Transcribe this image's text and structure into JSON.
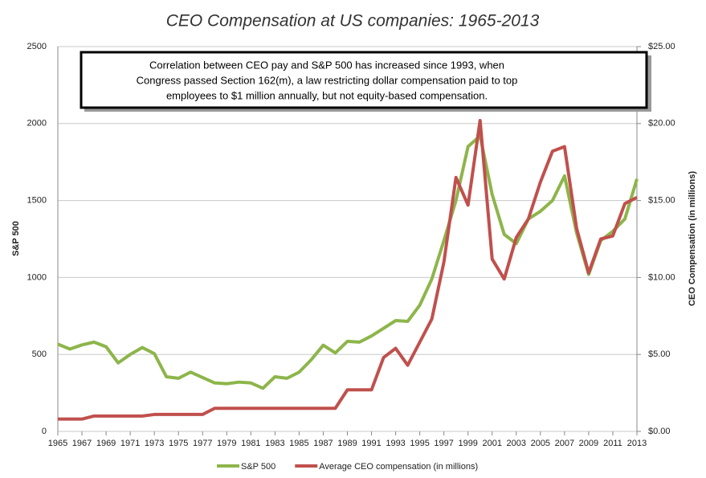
{
  "chart_data": {
    "type": "line",
    "title": "CEO Compensation at US companies: 1965-2013",
    "annotation": [
      "Correlation between CEO pay and S&P 500 has increased since 1993, when",
      "Congress passed Section 162(m), a law restricting dollar compensation paid to top",
      "employees to $1 million annually, but not equity-based compensation."
    ],
    "y_label": "S&P 500",
    "y2_label": "CEO Compensation (in millions)",
    "x": [
      1965,
      1966,
      1967,
      1968,
      1969,
      1970,
      1971,
      1972,
      1973,
      1974,
      1975,
      1976,
      1977,
      1978,
      1979,
      1980,
      1981,
      1982,
      1983,
      1984,
      1985,
      1986,
      1987,
      1988,
      1989,
      1990,
      1991,
      1992,
      1993,
      1994,
      1995,
      1996,
      1997,
      1998,
      1999,
      2000,
      2001,
      2002,
      2003,
      2004,
      2005,
      2006,
      2007,
      2008,
      2009,
      2010,
      2011,
      2012,
      2013
    ],
    "series": [
      {
        "name": "S&P 500",
        "color": "#8db54a",
        "values": [
          567,
          535,
          562,
          580,
          550,
          445,
          500,
          545,
          505,
          355,
          345,
          385,
          350,
          315,
          310,
          320,
          315,
          280,
          355,
          345,
          385,
          465,
          560,
          510,
          585,
          580,
          620,
          670,
          720,
          715,
          820,
          990,
          1240,
          1500,
          1850,
          1920,
          1540,
          1280,
          1220,
          1380,
          1430,
          1500,
          1660,
          1290,
          1020,
          1240,
          1300,
          1380,
          1640
        ]
      },
      {
        "name": "Average CEO compensation (in millions)",
        "color": "#c0504d",
        "axis": "y2",
        "values": [
          0.8,
          0.8,
          0.8,
          1.0,
          1.0,
          1.0,
          1.0,
          1.0,
          1.1,
          1.1,
          1.1,
          1.1,
          1.1,
          1.5,
          1.5,
          1.5,
          1.5,
          1.5,
          1.5,
          1.5,
          1.5,
          1.5,
          1.5,
          1.5,
          2.7,
          2.7,
          2.7,
          4.8,
          5.4,
          4.3,
          5.8,
          7.3,
          11.0,
          16.5,
          14.7,
          20.2,
          11.2,
          9.9,
          12.6,
          13.8,
          16.2,
          18.2,
          18.5,
          13.2,
          10.3,
          12.5,
          12.7,
          14.8,
          15.2
        ]
      }
    ],
    "xlim": [
      1965,
      2013
    ],
    "xticks": [
      1965,
      1967,
      1969,
      1971,
      1973,
      1975,
      1977,
      1979,
      1981,
      1983,
      1985,
      1987,
      1989,
      1991,
      1993,
      1995,
      1997,
      1999,
      2001,
      2003,
      2005,
      2007,
      2009,
      2011,
      2013
    ],
    "ylim": [
      0,
      2500
    ],
    "yticks": [
      0,
      500,
      1000,
      1500,
      2000,
      2500
    ],
    "y2lim": [
      0,
      25
    ],
    "y2ticks": [
      {
        "value": 0,
        "label": "$0.00"
      },
      {
        "value": 5,
        "label": "$5.00"
      },
      {
        "value": 10,
        "label": "$10.00"
      },
      {
        "value": 15,
        "label": "$15.00"
      },
      {
        "value": 20,
        "label": "$20.00"
      },
      {
        "value": 25,
        "label": "$25.00"
      }
    ],
    "grid": true,
    "legend": "bottom"
  }
}
